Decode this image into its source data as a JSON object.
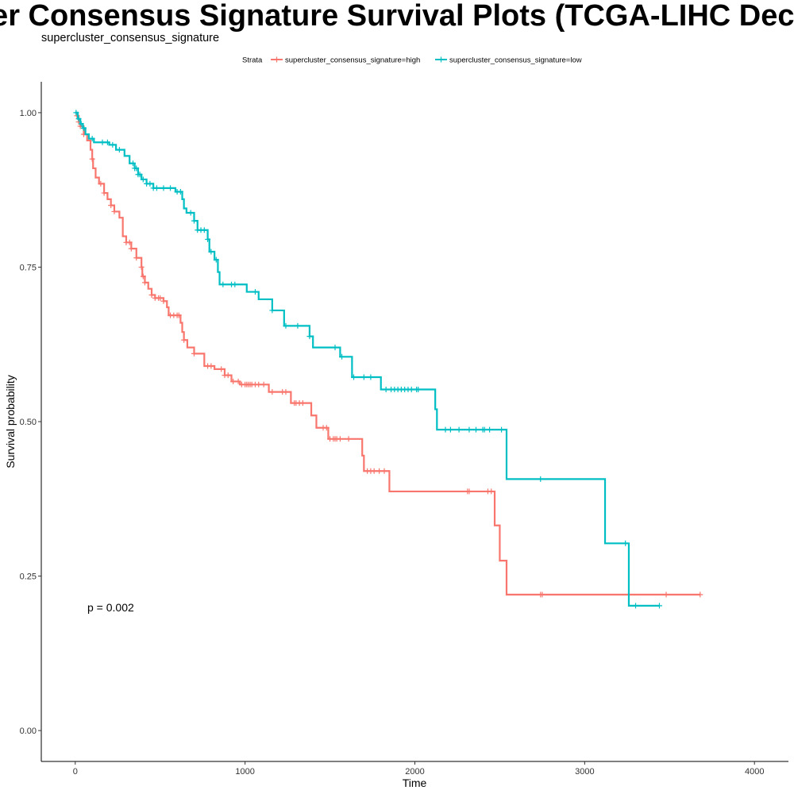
{
  "chart_data": {
    "type": "line",
    "title": "Supercluster Consensus Signature Survival Plots (TCGA-LIHC Deconvolution)",
    "subtitle": "supercluster_consensus_signature",
    "xlabel": "Time",
    "ylabel": "Survival probability",
    "xlim": [
      -200,
      4200
    ],
    "ylim": [
      -0.05,
      1.05
    ],
    "x_ticks": [
      0,
      1000,
      2000,
      3000,
      4000
    ],
    "y_ticks": [
      0.0,
      0.25,
      0.5,
      0.75,
      1.0
    ],
    "x_tick_labels": [
      "0",
      "1000",
      "2000",
      "3000",
      "4000"
    ],
    "y_tick_labels": [
      "0.00",
      "0.25",
      "0.50",
      "0.75",
      "1.00"
    ],
    "grid": false,
    "legend": {
      "position": "top",
      "title": "Strata"
    },
    "annotation": "p = 0.002",
    "series": [
      {
        "name": "supercluster_consensus_signature=high",
        "color": "#F8766D",
        "steps": [
          [
            0,
            1.0
          ],
          [
            10,
            0.995
          ],
          [
            20,
            0.985
          ],
          [
            30,
            0.978
          ],
          [
            50,
            0.965
          ],
          [
            70,
            0.955
          ],
          [
            90,
            0.94
          ],
          [
            100,
            0.925
          ],
          [
            105,
            0.91
          ],
          [
            120,
            0.895
          ],
          [
            140,
            0.885
          ],
          [
            170,
            0.87
          ],
          [
            190,
            0.86
          ],
          [
            210,
            0.85
          ],
          [
            230,
            0.84
          ],
          [
            260,
            0.83
          ],
          [
            280,
            0.8
          ],
          [
            300,
            0.79
          ],
          [
            330,
            0.78
          ],
          [
            360,
            0.765
          ],
          [
            390,
            0.75
          ],
          [
            395,
            0.735
          ],
          [
            410,
            0.725
          ],
          [
            430,
            0.715
          ],
          [
            450,
            0.705
          ],
          [
            470,
            0.7
          ],
          [
            520,
            0.695
          ],
          [
            540,
            0.685
          ],
          [
            550,
            0.672
          ],
          [
            620,
            0.66
          ],
          [
            630,
            0.645
          ],
          [
            640,
            0.632
          ],
          [
            660,
            0.62
          ],
          [
            700,
            0.61
          ],
          [
            760,
            0.59
          ],
          [
            820,
            0.585
          ],
          [
            880,
            0.575
          ],
          [
            920,
            0.565
          ],
          [
            970,
            0.56
          ],
          [
            1140,
            0.548
          ],
          [
            1270,
            0.53
          ],
          [
            1390,
            0.51
          ],
          [
            1420,
            0.49
          ],
          [
            1490,
            0.472
          ],
          [
            1690,
            0.445
          ],
          [
            1700,
            0.42
          ],
          [
            1850,
            0.387
          ],
          [
            2470,
            0.332
          ],
          [
            2500,
            0.275
          ],
          [
            2540,
            0.22
          ]
        ],
        "end_x": 3680,
        "censor": [
          10,
          20,
          30,
          50,
          100,
          150,
          170,
          210,
          230,
          300,
          320,
          330,
          360,
          390,
          400,
          410,
          450,
          470,
          490,
          500,
          520,
          560,
          580,
          600,
          610,
          640,
          700,
          780,
          800,
          860,
          880,
          900,
          930,
          960,
          980,
          1000,
          1010,
          1020,
          1030,
          1040,
          1060,
          1080,
          1110,
          1160,
          1220,
          1240,
          1290,
          1300,
          1320,
          1340,
          1460,
          1480,
          1500,
          1520,
          1530,
          1540,
          1560,
          1610,
          1720,
          1740,
          1760,
          1790,
          1820,
          2310,
          2320,
          2430,
          2450,
          2740,
          2750,
          3480,
          3680
        ]
      },
      {
        "name": "supercluster_consensus_signature=low",
        "color": "#00BFC4",
        "steps": [
          [
            0,
            1.0
          ],
          [
            15,
            0.99
          ],
          [
            30,
            0.982
          ],
          [
            45,
            0.975
          ],
          [
            60,
            0.965
          ],
          [
            80,
            0.958
          ],
          [
            110,
            0.952
          ],
          [
            200,
            0.948
          ],
          [
            240,
            0.94
          ],
          [
            290,
            0.93
          ],
          [
            320,
            0.918
          ],
          [
            350,
            0.91
          ],
          [
            370,
            0.9
          ],
          [
            390,
            0.892
          ],
          [
            420,
            0.885
          ],
          [
            460,
            0.878
          ],
          [
            590,
            0.872
          ],
          [
            630,
            0.86
          ],
          [
            640,
            0.845
          ],
          [
            655,
            0.838
          ],
          [
            700,
            0.825
          ],
          [
            720,
            0.81
          ],
          [
            780,
            0.795
          ],
          [
            790,
            0.775
          ],
          [
            820,
            0.762
          ],
          [
            840,
            0.742
          ],
          [
            850,
            0.722
          ],
          [
            1010,
            0.71
          ],
          [
            1080,
            0.698
          ],
          [
            1160,
            0.68
          ],
          [
            1230,
            0.655
          ],
          [
            1380,
            0.638
          ],
          [
            1400,
            0.62
          ],
          [
            1560,
            0.605
          ],
          [
            1630,
            0.572
          ],
          [
            1800,
            0.552
          ],
          [
            2120,
            0.52
          ],
          [
            2130,
            0.487
          ],
          [
            2540,
            0.407
          ],
          [
            3120,
            0.303
          ],
          [
            3260,
            0.202
          ]
        ],
        "end_x": 3440,
        "censor": [
          5,
          20,
          35,
          50,
          100,
          160,
          190,
          220,
          260,
          340,
          350,
          360,
          370,
          380,
          400,
          420,
          440,
          460,
          480,
          520,
          560,
          600,
          620,
          680,
          700,
          720,
          740,
          760,
          780,
          800,
          830,
          870,
          920,
          940,
          1060,
          1160,
          1240,
          1310,
          1380,
          1530,
          1570,
          1640,
          1700,
          1740,
          1830,
          1860,
          1880,
          1900,
          1920,
          1940,
          1960,
          1980,
          2010,
          2020,
          2180,
          2210,
          2260,
          2320,
          2360,
          2400,
          2410,
          2440,
          2510,
          2740,
          3240,
          3300,
          3440
        ]
      }
    ]
  }
}
